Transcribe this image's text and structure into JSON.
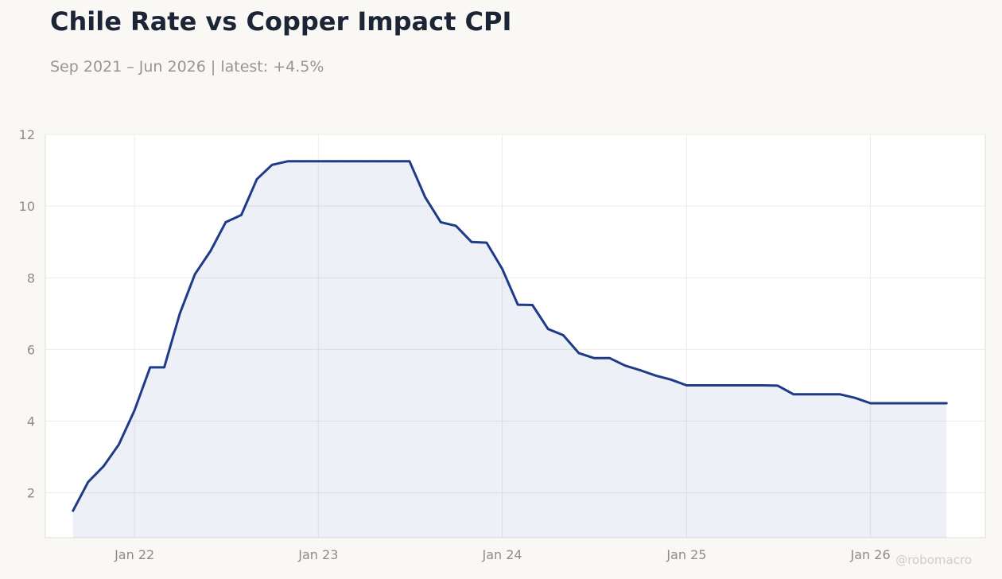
{
  "header": {
    "title": "Chile Rate vs Copper Impact CPI",
    "subtitle": "Sep 2021 – Jun 2026 | latest: +4.5%"
  },
  "watermark": "@robomacro",
  "colors": {
    "line": "#1f3a87",
    "fill": "#1f3a87",
    "background": "#f9f8f5",
    "plot_background": "#ffffff",
    "grid": "#ececec"
  },
  "chart_data": {
    "type": "area",
    "title": "Chile Rate vs Copper Impact CPI",
    "subtitle": "Sep 2021 – Jun 2026 | latest: +4.5%",
    "xlabel": "",
    "ylabel": "",
    "ylim": [
      0.75,
      12
    ],
    "xlim": [
      "2021-07-08",
      "2026-08-17"
    ],
    "grid": true,
    "legend": "none",
    "yticks": [
      2,
      4,
      6,
      8,
      10,
      12
    ],
    "xticks": [
      {
        "date": "2022-01-01",
        "label": "Jan 22"
      },
      {
        "date": "2023-01-01",
        "label": "Jan 23"
      },
      {
        "date": "2024-01-01",
        "label": "Jan 24"
      },
      {
        "date": "2025-01-01",
        "label": "Jan 25"
      },
      {
        "date": "2026-01-01",
        "label": "Jan 26"
      }
    ],
    "series": [
      {
        "values": [
          [
            "2021-09-01",
            1.5
          ],
          [
            "2021-10-01",
            2.3
          ],
          [
            "2021-11-01",
            2.75
          ],
          [
            "2021-12-01",
            3.35
          ],
          [
            "2022-01-01",
            4.3
          ],
          [
            "2022-02-01",
            5.5
          ],
          [
            "2022-03-01",
            5.5
          ],
          [
            "2022-04-01",
            7.0
          ],
          [
            "2022-05-01",
            8.1
          ],
          [
            "2022-06-01",
            8.75
          ],
          [
            "2022-07-01",
            9.55
          ],
          [
            "2022-08-01",
            9.75
          ],
          [
            "2022-09-01",
            10.75
          ],
          [
            "2022-10-01",
            11.15
          ],
          [
            "2022-11-01",
            11.25
          ],
          [
            "2022-12-01",
            11.25
          ],
          [
            "2023-01-01",
            11.25
          ],
          [
            "2023-02-01",
            11.25
          ],
          [
            "2023-03-01",
            11.25
          ],
          [
            "2023-04-01",
            11.25
          ],
          [
            "2023-05-01",
            11.25
          ],
          [
            "2023-06-01",
            11.25
          ],
          [
            "2023-07-01",
            11.25
          ],
          [
            "2023-08-01",
            10.25
          ],
          [
            "2023-09-01",
            9.55
          ],
          [
            "2023-10-01",
            9.45
          ],
          [
            "2023-11-01",
            9.0
          ],
          [
            "2023-12-01",
            8.98
          ],
          [
            "2024-01-01",
            8.25
          ],
          [
            "2024-02-01",
            7.25
          ],
          [
            "2024-03-01",
            7.24
          ],
          [
            "2024-04-01",
            6.57
          ],
          [
            "2024-05-01",
            6.4
          ],
          [
            "2024-06-01",
            5.9
          ],
          [
            "2024-07-01",
            5.76
          ],
          [
            "2024-08-01",
            5.76
          ],
          [
            "2024-09-01",
            5.55
          ],
          [
            "2024-10-01",
            5.42
          ],
          [
            "2024-11-01",
            5.27
          ],
          [
            "2024-12-01",
            5.16
          ],
          [
            "2025-01-01",
            5.0
          ],
          [
            "2025-02-01",
            5.0
          ],
          [
            "2025-03-01",
            5.0
          ],
          [
            "2025-04-01",
            5.0
          ],
          [
            "2025-05-01",
            5.0
          ],
          [
            "2025-06-01",
            5.0
          ],
          [
            "2025-07-01",
            4.99
          ],
          [
            "2025-08-01",
            4.75
          ],
          [
            "2025-09-01",
            4.75
          ],
          [
            "2025-10-01",
            4.75
          ],
          [
            "2025-11-01",
            4.75
          ],
          [
            "2025-12-01",
            4.65
          ],
          [
            "2026-01-01",
            4.5
          ],
          [
            "2026-02-01",
            4.5
          ],
          [
            "2026-03-01",
            4.5
          ],
          [
            "2026-04-01",
            4.5
          ],
          [
            "2026-05-01",
            4.5
          ],
          [
            "2026-06-01",
            4.5
          ]
        ]
      }
    ]
  }
}
